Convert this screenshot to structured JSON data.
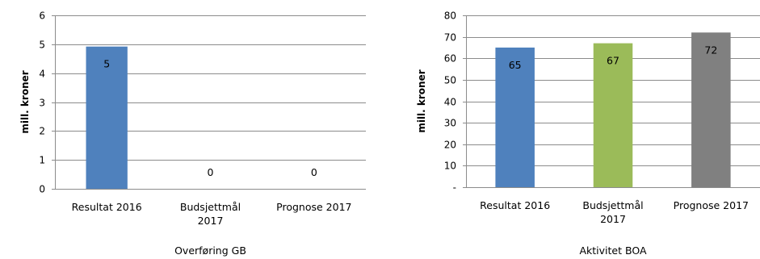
{
  "chart_data": [
    {
      "type": "bar",
      "categories": [
        [
          "Resultat 2016"
        ],
        [
          "Budsjettmål",
          "2017"
        ],
        [
          "Prognose 2017"
        ]
      ],
      "values": [
        4.92,
        0,
        0
      ],
      "data_labels": [
        "5",
        "0",
        "0"
      ],
      "colors": [
        "#4f81bd",
        "#4f81bd",
        "#4f81bd"
      ],
      "ylabel": "mill. kroner",
      "xlabel": "Overføring GB",
      "ylim": [
        0,
        6
      ],
      "yticks": [
        {
          "value": 0,
          "label": "0"
        },
        {
          "value": 1,
          "label": "1"
        },
        {
          "value": 2,
          "label": "2"
        },
        {
          "value": 3,
          "label": "3"
        },
        {
          "value": 4,
          "label": "4"
        },
        {
          "value": 5,
          "label": "5"
        },
        {
          "value": 6,
          "label": "6"
        }
      ],
      "grid": true
    },
    {
      "type": "bar",
      "categories": [
        [
          "Resultat 2016"
        ],
        [
          "Budsjettmål",
          "2017"
        ],
        [
          "Prognose 2017"
        ]
      ],
      "values": [
        65,
        67,
        72
      ],
      "data_labels": [
        "65",
        "67",
        "72"
      ],
      "colors": [
        "#4f81bd",
        "#9bbb59",
        "#808080"
      ],
      "ylabel": "mill. kroner",
      "xlabel": "Aktivitet BOA",
      "ylim": [
        0,
        80
      ],
      "yticks": [
        {
          "value": 0,
          "label": "-"
        },
        {
          "value": 10,
          "label": "10"
        },
        {
          "value": 20,
          "label": "20"
        },
        {
          "value": 30,
          "label": "30"
        },
        {
          "value": 40,
          "label": "40"
        },
        {
          "value": 50,
          "label": "50"
        },
        {
          "value": 60,
          "label": "60"
        },
        {
          "value": 70,
          "label": "70"
        },
        {
          "value": 80,
          "label": "80"
        }
      ],
      "grid": true
    }
  ]
}
